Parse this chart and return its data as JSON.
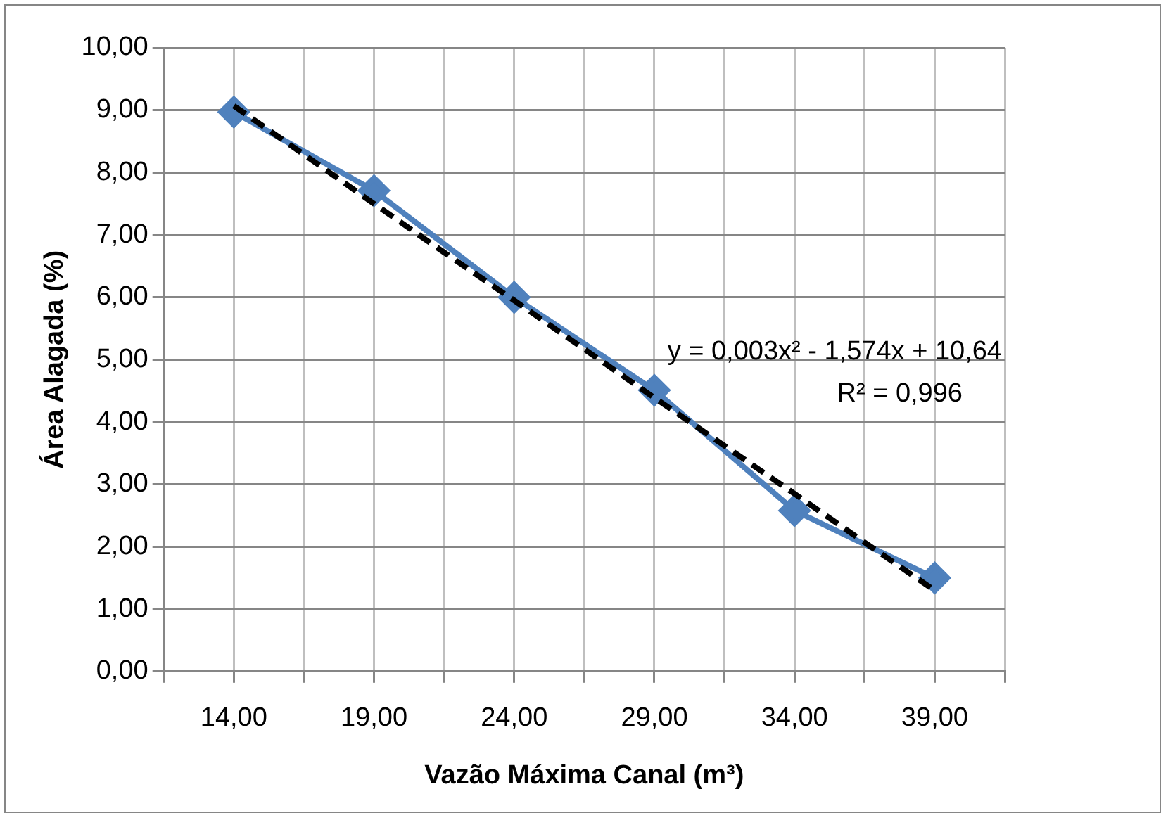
{
  "chart_data": {
    "type": "line",
    "xlabel": "Vazão Máxima Canal (m³)",
    "ylabel": "Área Alagada (%)",
    "series": [
      {
        "color": "#4f81bd",
        "x": [
          14,
          19,
          24,
          29,
          34,
          39
        ],
        "values": [
          8.97,
          7.71,
          6.0,
          4.51,
          2.58,
          1.5
        ],
        "marker": "diamond",
        "line_style": "solid"
      },
      {
        "type": "line",
        "color": "#000000",
        "x": [
          14,
          16.5,
          19,
          21.5,
          24,
          26.5,
          29,
          31.5,
          34,
          36.5,
          39
        ],
        "values": [
          9.07,
          8.29,
          7.5,
          6.72,
          5.95,
          5.17,
          4.39,
          3.62,
          2.85,
          2.07,
          1.3
        ],
        "marker": "none",
        "line_style": "dashed"
      }
    ],
    "xlim": [
      11.5,
      41.5
    ],
    "xticks": [
      {
        "value": 11.5,
        "label": null
      },
      {
        "value": 14,
        "label": "14,00"
      },
      {
        "value": 16.5,
        "label": null
      },
      {
        "value": 19,
        "label": "19,00"
      },
      {
        "value": 21.5,
        "label": null
      },
      {
        "value": 24,
        "label": "24,00"
      },
      {
        "value": 26.5,
        "label": null
      },
      {
        "value": 29,
        "label": "29,00"
      },
      {
        "value": 31.5,
        "label": null
      },
      {
        "value": 34,
        "label": "34,00"
      },
      {
        "value": 36.5,
        "label": null
      },
      {
        "value": 39,
        "label": "39,00"
      },
      {
        "value": 41.5,
        "label": null
      }
    ],
    "ylim": [
      0,
      10
    ],
    "yticks": [
      {
        "value": 0,
        "label": "0,00"
      },
      {
        "value": 1,
        "label": "1,00"
      },
      {
        "value": 2,
        "label": "2,00"
      },
      {
        "value": 3,
        "label": "3,00"
      },
      {
        "value": 4,
        "label": "4,00"
      },
      {
        "value": 5,
        "label": "5,00"
      },
      {
        "value": 6,
        "label": "6,00"
      },
      {
        "value": 7,
        "label": "7,00"
      },
      {
        "value": 8,
        "label": "8,00"
      },
      {
        "value": 9,
        "label": "9,00"
      },
      {
        "value": 10,
        "label": "10,00"
      }
    ],
    "grid": true,
    "legend": false,
    "annotations": [
      "y = 0,003x² - 1,574x + 10,64",
      "R² = 0,996"
    ]
  }
}
